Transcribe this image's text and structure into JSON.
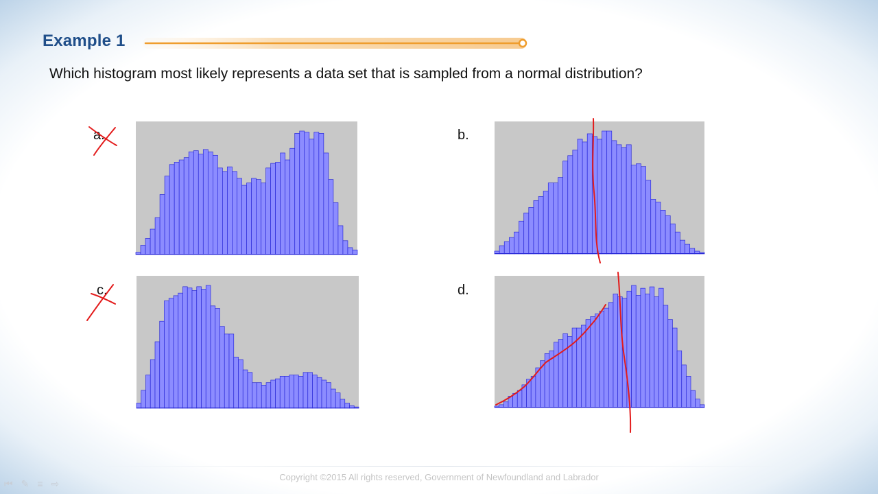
{
  "slide": {
    "title": "Example 1",
    "question": "Which histogram most likely represents a data set that is sampled from a normal distribution?",
    "footer": "Copyright ©2015 All rights reserved, Government of Newfoundland and Labrador",
    "accent_color": "#f2a33a",
    "title_color": "#1f4e89",
    "ink_color": "#e31b1b"
  },
  "player_controls": [
    {
      "icon": "previous-icon",
      "glyph": "⏮"
    },
    {
      "icon": "pen-icon",
      "glyph": "✎"
    },
    {
      "icon": "menu-icon",
      "glyph": "≡"
    },
    {
      "icon": "next-icon",
      "glyph": "⇨"
    }
  ],
  "chart_data": [
    {
      "type": "bar",
      "option": "a.",
      "bar_color": "#8c8cff",
      "background": "#c8c8c8",
      "values": [
        2,
        8,
        14,
        22,
        32,
        52,
        68,
        78,
        80,
        82,
        84,
        89,
        90,
        87,
        91,
        89,
        86,
        75,
        72,
        76,
        72,
        66,
        60,
        62,
        66,
        65,
        62,
        75,
        79,
        80,
        88,
        82,
        92,
        105,
        107,
        106,
        100,
        106,
        105,
        88,
        65,
        45,
        25,
        12,
        6,
        4
      ]
    },
    {
      "type": "bar",
      "option": "b.",
      "bar_color": "#8c8cff",
      "background": "#c8c8c8",
      "values": [
        2,
        6,
        9,
        12,
        16,
        24,
        30,
        34,
        39,
        42,
        46,
        52,
        52,
        56,
        68,
        72,
        76,
        84,
        82,
        88,
        86,
        84,
        90,
        90,
        83,
        80,
        78,
        80,
        65,
        66,
        64,
        54,
        40,
        38,
        32,
        28,
        22,
        16,
        10,
        7,
        4,
        2,
        1
      ]
    },
    {
      "type": "bar",
      "option": "c.",
      "bar_color": "#8c8cff",
      "background": "#c8c8c8",
      "values": [
        4,
        14,
        26,
        38,
        52,
        68,
        84,
        86,
        88,
        90,
        95,
        94,
        92,
        95,
        93,
        96,
        80,
        78,
        64,
        58,
        58,
        40,
        38,
        30,
        28,
        20,
        20,
        18,
        20,
        22,
        23,
        25,
        25,
        26,
        26,
        25,
        28,
        28,
        26,
        24,
        22,
        20,
        15,
        12,
        7,
        4,
        2,
        1
      ]
    },
    {
      "type": "bar",
      "option": "d.",
      "bar_color": "#8c8cff",
      "background": "#c8c8c8",
      "values": [
        1,
        2,
        4,
        8,
        10,
        12,
        16,
        20,
        22,
        28,
        33,
        38,
        40,
        46,
        48,
        52,
        50,
        56,
        56,
        58,
        62,
        64,
        66,
        68,
        70,
        74,
        80,
        78,
        77,
        82,
        86,
        79,
        84,
        80,
        85,
        78,
        84,
        72,
        62,
        56,
        40,
        30,
        22,
        12,
        6,
        2
      ]
    }
  ]
}
